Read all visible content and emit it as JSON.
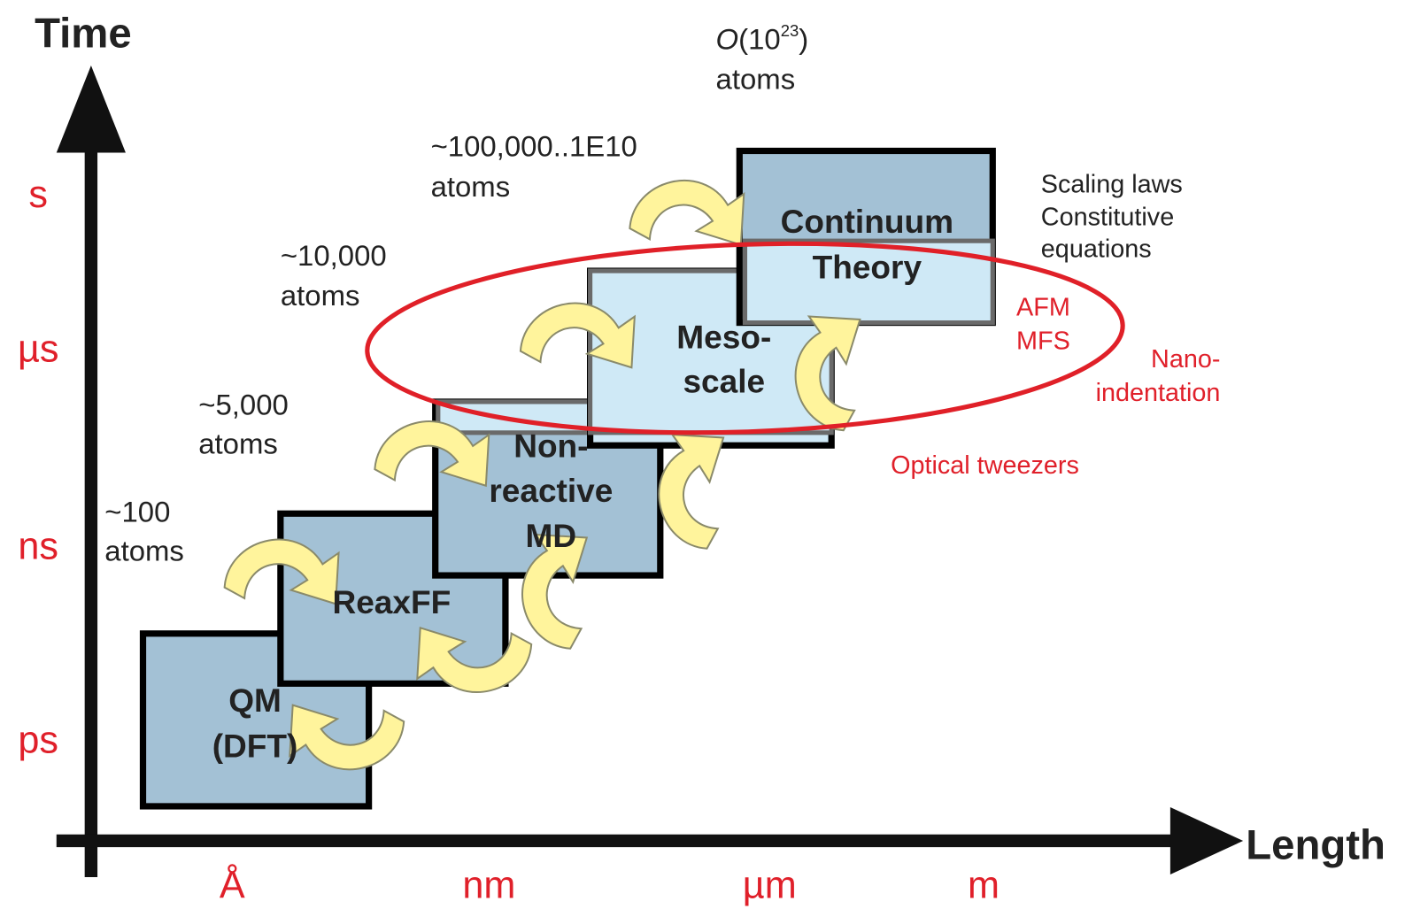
{
  "axes": {
    "y_label": "Time",
    "x_label": "Length",
    "y_ticks": [
      "s",
      "µs",
      "ns",
      "ps"
    ],
    "x_ticks": [
      "Å",
      "nm",
      "µm",
      "m"
    ]
  },
  "boxes": [
    {
      "label": [
        "QM",
        "(DFT)"
      ]
    },
    {
      "label": [
        "ReaxFF"
      ]
    },
    {
      "label": [
        "Non-",
        "reactive",
        "MD"
      ]
    },
    {
      "label": [
        "Meso-",
        "scale"
      ]
    },
    {
      "label": [
        "Continuum",
        "Theory"
      ]
    }
  ],
  "atom_counts": [
    {
      "lines": [
        "~100",
        "atoms"
      ]
    },
    {
      "lines": [
        "~5,000",
        "atoms"
      ]
    },
    {
      "lines": [
        "~10,000",
        "atoms"
      ]
    },
    {
      "lines": [
        "~100,000..1E10",
        "atoms"
      ]
    },
    {
      "prefix": "O",
      "base": "(10",
      "exponent": "23",
      "suffix": ")",
      "lines": [
        "atoms"
      ]
    }
  ],
  "scale_notes": [
    "Scaling laws",
    "Constitutive",
    "equations"
  ],
  "experiments": {
    "afm": [
      "AFM",
      "MFS"
    ],
    "nano": [
      "Nano-",
      "indentation"
    ],
    "optical": "Optical tweezers"
  }
}
